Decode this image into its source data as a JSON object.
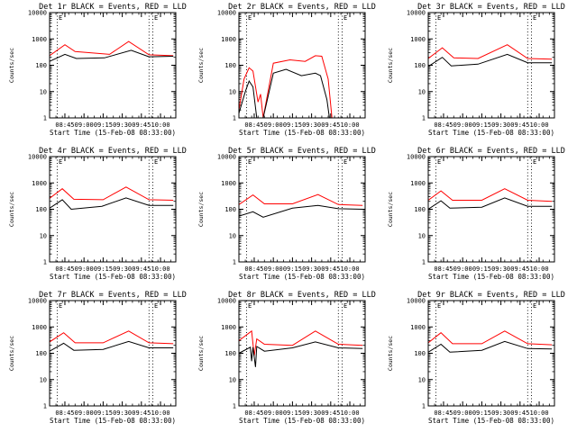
{
  "chart_data": [
    {
      "type": "line",
      "title": "Det 1r BLACK = Events, RED = LLD",
      "ylabel": "Counts/sec",
      "xlabel": "Start Time (15-Feb-08 08:33:00)",
      "yscale": "log",
      "ylim": [
        1,
        10000
      ],
      "y_ticks": [
        "1",
        "10",
        "100",
        "1000",
        "10000"
      ],
      "xlim": [
        "08:33",
        "10:12"
      ],
      "x_ticks": [
        "08:45",
        "09:00",
        "09:15",
        "09:30",
        "09:45",
        "10:00"
      ],
      "markers": [
        "08:39",
        "09:51",
        "09:54"
      ],
      "marker_letter": "E",
      "series": [
        {
          "color": "#ff0000",
          "x": [
            "08:33",
            "08:45",
            "08:53",
            "09:20",
            "09:35",
            "09:51",
            "10:10"
          ],
          "y": [
            230,
            600,
            330,
            260,
            800,
            250,
            230
          ]
        },
        {
          "color": "#000000",
          "x": [
            "08:33",
            "08:45",
            "08:54",
            "09:16",
            "09:37",
            "09:51",
            "10:10"
          ],
          "y": [
            140,
            260,
            180,
            190,
            370,
            210,
            220
          ]
        }
      ]
    },
    {
      "type": "line",
      "title": "Det 2r BLACK = Events, RED = LLD",
      "ylabel": "Counts/sec",
      "xlabel": "Start Time (15-Feb-08 08:33:00)",
      "yscale": "log",
      "ylim": [
        1,
        10000
      ],
      "y_ticks": [
        "1",
        "10",
        "100",
        "1000",
        "10000"
      ],
      "xlim": [
        "08:33",
        "10:12"
      ],
      "x_ticks": [
        "08:45",
        "09:00",
        "09:15",
        "09:30",
        "09:45",
        "10:00"
      ],
      "markers": [
        "08:39",
        "09:51",
        "09:54"
      ],
      "marker_letter": "E",
      "series": [
        {
          "color": "#ff0000",
          "x": [
            "08:33",
            "08:37",
            "08:41",
            "08:44",
            "08:48",
            "08:50",
            "08:52",
            "09:00",
            "09:13",
            "09:25",
            "09:33",
            "09:38",
            "09:43",
            "09:46"
          ],
          "y": [
            2,
            30,
            80,
            60,
            4,
            8,
            1,
            120,
            160,
            140,
            230,
            220,
            30,
            1
          ]
        },
        {
          "color": "#000000",
          "x": [
            "08:33",
            "08:38",
            "08:41",
            "08:44",
            "08:47",
            "08:52",
            "09:00",
            "09:10",
            "09:22",
            "09:33",
            "09:37",
            "09:42",
            "09:44"
          ],
          "y": [
            1.5,
            10,
            25,
            15,
            1,
            1,
            50,
            70,
            40,
            50,
            40,
            5,
            1
          ]
        }
      ]
    },
    {
      "type": "line",
      "title": "Det 3r BLACK = Events, RED = LLD",
      "ylabel": "Counts/sec",
      "xlabel": "Start Time (15-Feb-08 08:33:00)",
      "yscale": "log",
      "ylim": [
        1,
        10000
      ],
      "y_ticks": [
        "1",
        "10",
        "100",
        "1000",
        "10000"
      ],
      "xlim": [
        "08:33",
        "10:12"
      ],
      "x_ticks": [
        "08:45",
        "09:00",
        "09:15",
        "09:30",
        "09:45",
        "10:00"
      ],
      "markers": [
        "08:39",
        "09:51",
        "09:54"
      ],
      "marker_letter": "E",
      "series": [
        {
          "color": "#ff0000",
          "x": [
            "08:33",
            "08:44",
            "08:53",
            "09:12",
            "09:35",
            "09:51",
            "10:10"
          ],
          "y": [
            180,
            460,
            190,
            180,
            600,
            180,
            170
          ]
        },
        {
          "color": "#000000",
          "x": [
            "08:33",
            "08:44",
            "08:51",
            "09:12",
            "09:35",
            "09:51",
            "10:10"
          ],
          "y": [
            90,
            200,
            95,
            110,
            260,
            125,
            125
          ]
        }
      ]
    },
    {
      "type": "line",
      "title": "Det 4r BLACK = Events, RED = LLD",
      "ylabel": "Counts/sec",
      "xlabel": "Start Time (15-Feb-08 08:33:00)",
      "yscale": "log",
      "ylim": [
        1,
        10000
      ],
      "y_ticks": [
        "1",
        "10",
        "100",
        "1000",
        "10000"
      ],
      "xlim": [
        "08:33",
        "10:12"
      ],
      "x_ticks": [
        "08:45",
        "09:00",
        "09:15",
        "09:30",
        "09:45",
        "10:00"
      ],
      "markers": [
        "08:39",
        "09:51",
        "09:54"
      ],
      "marker_letter": "E",
      "series": [
        {
          "color": "#ff0000",
          "x": [
            "08:33",
            "08:43",
            "08:52",
            "09:15",
            "09:33",
            "09:51",
            "10:10"
          ],
          "y": [
            260,
            600,
            240,
            230,
            700,
            230,
            220
          ]
        },
        {
          "color": "#000000",
          "x": [
            "08:33",
            "08:43",
            "08:50",
            "09:14",
            "09:33",
            "09:51",
            "10:10"
          ],
          "y": [
            110,
            230,
            100,
            130,
            270,
            140,
            140
          ]
        }
      ]
    },
    {
      "type": "line",
      "title": "Det 5r BLACK = Events, RED = LLD",
      "ylabel": "Counts/sec",
      "xlabel": "Start Time (15-Feb-08 08:33:00)",
      "yscale": "log",
      "ylim": [
        1,
        10000
      ],
      "y_ticks": [
        "1",
        "10",
        "100",
        "1000",
        "10000"
      ],
      "xlim": [
        "08:33",
        "10:12"
      ],
      "x_ticks": [
        "08:45",
        "09:00",
        "09:15",
        "09:30",
        "09:45",
        "10:00"
      ],
      "markers": [
        "08:39",
        "09:51",
        "09:54"
      ],
      "marker_letter": "E",
      "series": [
        {
          "color": "#ff0000",
          "x": [
            "08:33",
            "08:44",
            "08:53",
            "09:15",
            "09:35",
            "09:51",
            "10:10"
          ],
          "y": [
            150,
            350,
            160,
            160,
            360,
            150,
            140
          ]
        },
        {
          "color": "#000000",
          "x": [
            "08:33",
            "08:44",
            "08:52",
            "09:15",
            "09:35",
            "09:51",
            "10:10"
          ],
          "y": [
            55,
            80,
            50,
            110,
            140,
            105,
            100
          ]
        }
      ]
    },
    {
      "type": "line",
      "title": "Det 6r BLACK = Events, RED = LLD",
      "ylabel": "Counts/sec",
      "xlabel": "Start Time (15-Feb-08 08:33:00)",
      "yscale": "log",
      "ylim": [
        1,
        10000
      ],
      "y_ticks": [
        "1",
        "10",
        "100",
        "1000",
        "10000"
      ],
      "xlim": [
        "08:33",
        "10:12"
      ],
      "x_ticks": [
        "08:45",
        "09:00",
        "09:15",
        "09:30",
        "09:45",
        "10:00"
      ],
      "markers": [
        "08:39",
        "09:51",
        "09:54"
      ],
      "marker_letter": "E",
      "series": [
        {
          "color": "#ff0000",
          "x": [
            "08:33",
            "08:43",
            "08:52",
            "09:15",
            "09:33",
            "09:51",
            "10:10"
          ],
          "y": [
            220,
            500,
            220,
            220,
            600,
            220,
            200
          ]
        },
        {
          "color": "#000000",
          "x": [
            "08:33",
            "08:43",
            "08:50",
            "09:15",
            "09:33",
            "09:51",
            "10:10"
          ],
          "y": [
            100,
            210,
            110,
            120,
            270,
            130,
            130
          ]
        }
      ]
    },
    {
      "type": "line",
      "title": "Det 7r BLACK = Events, RED = LLD",
      "ylabel": "Counts/sec",
      "xlabel": "Start Time (15-Feb-08 08:33:00)",
      "yscale": "log",
      "ylim": [
        1,
        10000
      ],
      "y_ticks": [
        "1",
        "10",
        "100",
        "1000",
        "10000"
      ],
      "xlim": [
        "08:33",
        "10:12"
      ],
      "x_ticks": [
        "08:45",
        "09:00",
        "09:15",
        "09:30",
        "09:45",
        "10:00"
      ],
      "markers": [
        "08:39",
        "09:51",
        "09:54"
      ],
      "marker_letter": "E",
      "series": [
        {
          "color": "#ff0000",
          "x": [
            "08:33",
            "08:44",
            "08:53",
            "09:15",
            "09:35",
            "09:51",
            "10:10"
          ],
          "y": [
            270,
            600,
            250,
            250,
            700,
            250,
            230
          ]
        },
        {
          "color": "#000000",
          "x": [
            "08:33",
            "08:44",
            "08:52",
            "09:15",
            "09:35",
            "09:51",
            "10:10"
          ],
          "y": [
            120,
            240,
            130,
            140,
            280,
            160,
            160
          ]
        }
      ]
    },
    {
      "type": "line",
      "title": "Det 8r BLACK = Events, RED = LLD",
      "ylabel": "Counts/sec",
      "xlabel": "Start Time (15-Feb-08 08:33:00)",
      "yscale": "log",
      "ylim": [
        1,
        10000
      ],
      "y_ticks": [
        "1",
        "10",
        "100",
        "1000",
        "10000"
      ],
      "xlim": [
        "08:33",
        "10:12"
      ],
      "x_ticks": [
        "08:45",
        "09:00",
        "09:15",
        "09:30",
        "09:45",
        "10:00"
      ],
      "markers": [
        "08:39",
        "09:51",
        "09:54"
      ],
      "marker_letter": "E",
      "series": [
        {
          "color": "#ff0000",
          "x": [
            "08:33",
            "08:43",
            "08:45",
            "08:47",
            "08:53",
            "09:15",
            "09:33",
            "09:51",
            "10:10"
          ],
          "y": [
            300,
            700,
            80,
            350,
            220,
            200,
            700,
            220,
            200
          ]
        },
        {
          "color": "#000000",
          "x": [
            "08:33",
            "08:42",
            "08:43",
            "08:44",
            "08:46",
            "08:47",
            "08:53",
            "09:15",
            "09:33",
            "09:51",
            "10:10"
          ],
          "y": [
            100,
            170,
            50,
            170,
            30,
            180,
            120,
            160,
            270,
            160,
            150
          ]
        }
      ]
    },
    {
      "type": "line",
      "title": "Det 9r BLACK = Events, RED = LLD",
      "ylabel": "Counts/sec",
      "xlabel": "Start Time (15-Feb-08 08:33:00)",
      "yscale": "log",
      "ylim": [
        1,
        10000
      ],
      "y_ticks": [
        "1",
        "10",
        "100",
        "1000",
        "10000"
      ],
      "xlim": [
        "08:33",
        "10:12"
      ],
      "x_ticks": [
        "08:45",
        "09:00",
        "09:15",
        "09:30",
        "09:45",
        "10:00"
      ],
      "markers": [
        "08:39",
        "09:51",
        "09:54"
      ],
      "marker_letter": "E",
      "series": [
        {
          "color": "#ff0000",
          "x": [
            "08:33",
            "08:43",
            "08:52",
            "09:15",
            "09:33",
            "09:51",
            "10:10"
          ],
          "y": [
            250,
            600,
            230,
            230,
            700,
            230,
            210
          ]
        },
        {
          "color": "#000000",
          "x": [
            "08:33",
            "08:43",
            "08:50",
            "09:15",
            "09:33",
            "09:51",
            "10:10"
          ],
          "y": [
            110,
            220,
            110,
            130,
            280,
            150,
            145
          ]
        }
      ]
    }
  ]
}
